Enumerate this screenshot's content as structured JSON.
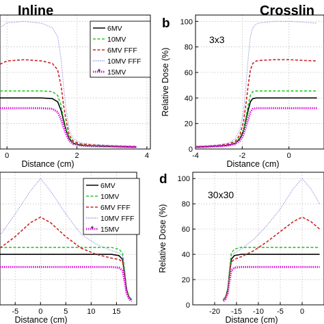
{
  "figure": {
    "column_titles": [
      "Inline",
      "Crosslin"
    ],
    "panel_letters": [
      "b",
      "d"
    ],
    "legend": [
      "6MV",
      "10MV",
      "6MV FFF",
      "10MV FFF",
      "15MV"
    ],
    "colors": {
      "6MV": "#000000",
      "10MV": "#22cc22",
      "6MV FFF": "#cc2222",
      "10MV FFF": "#7777dd",
      "15MV": "#dd11dd"
    }
  },
  "chart_data": [
    {
      "type": "line",
      "panel": "a-inline-3x3 (cropped)",
      "xlabel": "Distance (cm)",
      "ylabel": "",
      "xlim": [
        -0.2,
        4.1
      ],
      "ylim": [
        0,
        105
      ],
      "xticks": [
        0,
        2,
        4
      ],
      "yticks": [],
      "legend_position": "top-right",
      "grid": true,
      "x": [
        -0.2,
        0.0,
        0.5,
        1.0,
        1.3,
        1.45,
        1.55,
        1.62,
        1.7,
        1.78,
        1.9,
        2.1,
        2.4,
        3.0,
        3.7
      ],
      "series": [
        {
          "name": "6MV",
          "style": "solid",
          "values": [
            40,
            40,
            40,
            40,
            39.5,
            37,
            30,
            22,
            14,
            8,
            4.5,
            3,
            2.5,
            2,
            1.5
          ]
        },
        {
          "name": "10MV",
          "style": "dashed",
          "values": [
            45.5,
            45.5,
            45.5,
            45.5,
            45,
            42,
            34,
            24,
            15,
            9,
            5,
            3.5,
            2.8,
            2.2,
            1.8
          ]
        },
        {
          "name": "6MV FFF",
          "style": "dashed",
          "values": [
            66.5,
            69,
            70,
            69,
            67,
            62,
            49,
            34,
            21,
            11,
            6,
            4,
            3.2,
            2.5,
            2
          ]
        },
        {
          "name": "10MV FFF",
          "style": "dotted",
          "values": [
            95,
            99,
            100,
            98.5,
            95,
            88,
            70,
            48,
            29,
            15,
            8,
            5,
            3.8,
            2.8,
            2.2
          ]
        },
        {
          "name": "15MV",
          "style": "dotted-marker",
          "values": [
            32,
            32,
            32,
            32,
            31.5,
            29,
            23,
            17,
            11,
            6.5,
            3.8,
            2.8,
            2.2,
            1.8,
            1.5
          ]
        }
      ]
    },
    {
      "type": "line",
      "panel": "b-crossline-3x3",
      "field_label": "3x3",
      "xlabel": "Distance (cm)",
      "ylabel": "Relative Dose (%)",
      "xlim": [
        -4,
        1.5
      ],
      "ylim": [
        0,
        105
      ],
      "xticks": [
        -4,
        -2,
        0
      ],
      "yticks": [
        0,
        20,
        40,
        60,
        80,
        100
      ],
      "grid": true,
      "x": [
        -4,
        -3.5,
        -3,
        -2.6,
        -2.3,
        -2.1,
        -1.95,
        -1.85,
        -1.75,
        -1.65,
        -1.55,
        -1.4,
        -1.2,
        -0.6,
        0,
        0.6,
        1.2
      ],
      "series": [
        {
          "name": "6MV",
          "style": "solid",
          "values": [
            1.5,
            1.8,
            2.3,
            3,
            4.5,
            8,
            14,
            22,
            30,
            37,
            39.5,
            40,
            40,
            40,
            40,
            40,
            40
          ]
        },
        {
          "name": "10MV",
          "style": "dashed",
          "values": [
            1.8,
            2,
            2.5,
            3.4,
            5,
            9,
            15,
            24,
            34,
            42,
            45,
            45.5,
            45.5,
            45.5,
            45.5,
            45.5,
            45.5
          ]
        },
        {
          "name": "6MV FFF",
          "style": "dashed",
          "values": [
            2,
            2.3,
            3,
            4,
            6,
            11,
            21,
            34,
            49,
            62,
            67,
            69,
            69.5,
            70,
            70,
            69.5,
            69
          ]
        },
        {
          "name": "10MV FFF",
          "style": "dotted",
          "values": [
            2.2,
            2.6,
            3.3,
            4.8,
            8,
            15,
            29,
            48,
            70,
            88,
            95,
            98,
            99,
            100,
            100,
            99.5,
            98.5
          ]
        },
        {
          "name": "15MV",
          "style": "dotted-marker",
          "values": [
            1.5,
            1.7,
            2.2,
            2.8,
            3.8,
            6.5,
            11,
            17,
            23,
            29,
            31.5,
            32,
            32,
            32,
            32,
            32,
            32
          ]
        }
      ]
    },
    {
      "type": "line",
      "panel": "c-inline-30x30 (cropped)",
      "xlabel": "Distance (cm)",
      "ylabel": "",
      "xlim": [
        -8,
        19
      ],
      "ylim": [
        0,
        105
      ],
      "xticks": [
        -5,
        0,
        5,
        10,
        15
      ],
      "yticks": [],
      "legend_position": "top-right",
      "grid": true,
      "x": [
        -8,
        -5,
        -2,
        0,
        2,
        5,
        8,
        11,
        14,
        15.5,
        16.2,
        16.6,
        17,
        17.5,
        18
      ],
      "series": [
        {
          "name": "6MV",
          "style": "solid",
          "values": [
            40,
            40,
            40,
            40,
            40,
            40,
            40,
            40,
            40,
            39,
            36,
            25,
            12,
            6,
            4
          ]
        },
        {
          "name": "10MV",
          "style": "dashed",
          "values": [
            45.5,
            45.5,
            45.5,
            45.5,
            45.5,
            45.5,
            45.5,
            45.5,
            45.5,
            44,
            41,
            28,
            13,
            6.5,
            4.5
          ]
        },
        {
          "name": "6MV FFF",
          "style": "dashed",
          "values": [
            45,
            54,
            65,
            69.5,
            65,
            54,
            45,
            40,
            37,
            36,
            34,
            24,
            11,
            5.5,
            4
          ]
        },
        {
          "name": "10MV FFF",
          "style": "dotted",
          "values": [
            55,
            72,
            90,
            100,
            90,
            72,
            56,
            48,
            43,
            41,
            39,
            27,
            12,
            6,
            4
          ]
        },
        {
          "name": "15MV",
          "style": "dotted-marker",
          "values": [
            30,
            30,
            30,
            30,
            30,
            30,
            30,
            30,
            30,
            29.5,
            27,
            19,
            9,
            4.5,
            3
          ]
        }
      ]
    },
    {
      "type": "line",
      "panel": "d-crossline-30x30",
      "field_label": "30x30",
      "xlabel": "Distance (cm)",
      "ylabel": "Relative Dose (%)",
      "xlim": [
        -25,
        5
      ],
      "ylim": [
        0,
        105
      ],
      "xticks": [
        -20,
        -15,
        -10,
        -5,
        0
      ],
      "yticks": [
        0,
        20,
        40,
        60,
        80,
        100
      ],
      "grid": true,
      "x": [
        -18,
        -17.5,
        -17,
        -16.6,
        -16.2,
        -15.5,
        -14,
        -11,
        -8,
        -5,
        -2,
        0,
        2,
        4
      ],
      "series": [
        {
          "name": "6MV",
          "style": "solid",
          "values": [
            4,
            6,
            12,
            25,
            36,
            39,
            40,
            40,
            40,
            40,
            40,
            40,
            40,
            40
          ]
        },
        {
          "name": "10MV",
          "style": "dashed",
          "values": [
            4.5,
            6.5,
            13,
            28,
            41,
            44,
            45.5,
            45.5,
            45.5,
            45.5,
            45.5,
            45.5,
            45.5,
            45.5
          ]
        },
        {
          "name": "6MV FFF",
          "style": "dashed",
          "values": [
            4,
            5.5,
            11,
            24,
            34,
            36,
            38,
            43,
            50,
            58,
            66,
            69.5,
            66,
            60
          ]
        },
        {
          "name": "10MV FFF",
          "style": "dotted",
          "values": [
            4,
            6,
            12,
            27,
            39,
            41,
            44,
            52,
            63,
            76,
            92,
            100,
            92,
            80
          ]
        },
        {
          "name": "15MV",
          "style": "dotted-marker",
          "values": [
            3,
            4.5,
            9,
            19,
            27,
            29.5,
            30,
            30,
            30,
            30,
            30,
            30,
            30,
            30
          ]
        }
      ]
    }
  ]
}
